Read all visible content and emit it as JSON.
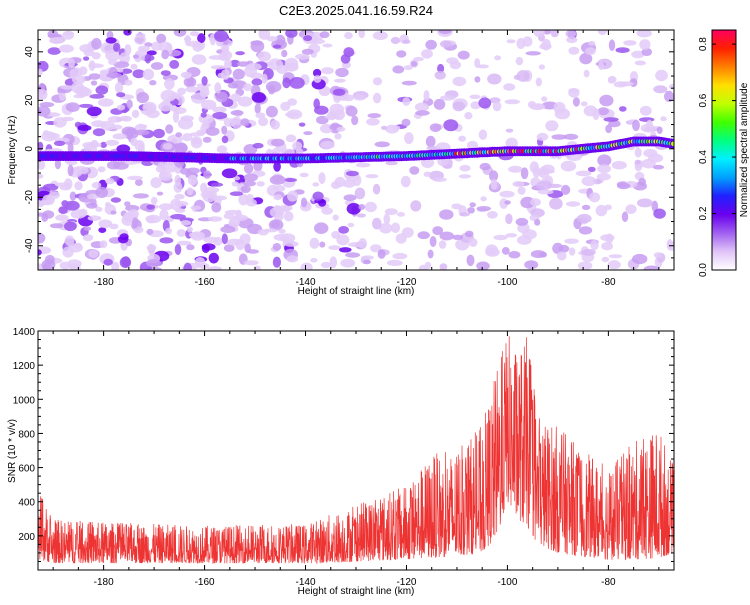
{
  "title": "C2E3.2025.041.16.59.R24",
  "chart_data": [
    {
      "type": "heatmap",
      "xlabel": "Height of straight line (km)",
      "ylabel": "Frequency (Hz)",
      "xlim": [
        -193,
        -67
      ],
      "ylim": [
        -50,
        49
      ],
      "xticks": [
        -180,
        -160,
        -140,
        -120,
        -100,
        -80
      ],
      "yticks": [
        -40,
        -20,
        0,
        20,
        40
      ],
      "ridge": {
        "description_x": [
          -193,
          -175,
          -155,
          -140,
          -120,
          -100,
          -90,
          -80,
          -75,
          -70,
          -67
        ],
        "frequency_y": [
          -3,
          -3,
          -4,
          -4,
          -3,
          -1,
          -1,
          1,
          3,
          3,
          2
        ]
      },
      "colorbar": {
        "label": "Normalized spectral amplitude",
        "ticks": [
          0.0,
          0.2,
          0.4,
          0.6,
          0.8
        ],
        "tick_labels": [
          "0.0",
          "0.2",
          "0.4",
          "0.6",
          "0.8"
        ],
        "range": [
          0,
          0.85
        ],
        "colors": [
          "#ffffff",
          "#e0c4f8",
          "#a060f0",
          "#6a00ee",
          "#2020ff",
          "#00a0ff",
          "#00f0ff",
          "#00ff80",
          "#40ff00",
          "#c0ff00",
          "#ffe000",
          "#ff8000",
          "#ff2000",
          "#ff0060"
        ]
      },
      "grid": false
    },
    {
      "type": "line",
      "xlabel": "Height of straight line (km)",
      "ylabel": "SNR (10 * v/v)",
      "xlim": [
        -193,
        -67
      ],
      "ylim": [
        0,
        1400
      ],
      "xticks": [
        -180,
        -160,
        -140,
        -120,
        -100,
        -80
      ],
      "yticks": [
        200,
        400,
        600,
        800,
        1000,
        1200,
        1400
      ],
      "color": "#ee3333",
      "envelope": {
        "x": [
          -193,
          -190,
          -180,
          -160,
          -140,
          -135,
          -130,
          -120,
          -115,
          -110,
          -105,
          -102,
          -100,
          -98,
          -96,
          -94,
          -90,
          -85,
          -80,
          -75,
          -70,
          -67
        ],
        "y_high": [
          480,
          300,
          280,
          260,
          270,
          330,
          380,
          500,
          680,
          700,
          850,
          1200,
          1400,
          1300,
          1380,
          900,
          850,
          700,
          600,
          750,
          850,
          600
        ],
        "y_low": [
          60,
          40,
          40,
          40,
          40,
          40,
          50,
          60,
          70,
          80,
          100,
          200,
          400,
          300,
          250,
          150,
          100,
          80,
          60,
          60,
          70,
          100
        ]
      },
      "grid": false
    }
  ]
}
